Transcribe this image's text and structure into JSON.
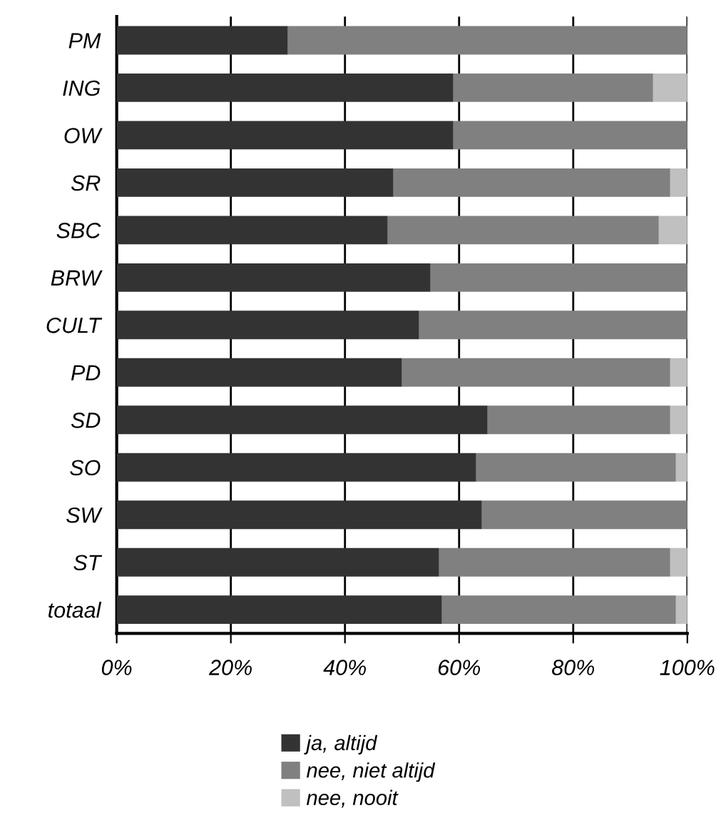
{
  "chart_data": {
    "type": "bar",
    "orientation": "horizontal",
    "stacked": true,
    "categories": [
      "PM",
      "ING",
      "OW",
      "SR",
      "SBC",
      "BRW",
      "CULT",
      "PD",
      "SD",
      "SO",
      "SW",
      "ST",
      "totaal"
    ],
    "series": [
      {
        "name": "ja, altijd",
        "color": "#333333",
        "values": [
          30,
          59,
          59,
          48.5,
          47.5,
          55,
          53,
          50,
          65,
          63,
          64,
          56.5,
          57
        ]
      },
      {
        "name": "nee, niet altijd",
        "color": "#808080",
        "values": [
          70,
          35,
          41,
          48.5,
          47.5,
          45,
          47,
          47,
          32,
          35,
          36,
          40.5,
          41
        ]
      },
      {
        "name": "nee, nooit",
        "color": "#c0c0c0",
        "values": [
          0,
          6,
          0,
          3,
          5,
          0,
          0,
          3,
          3,
          2,
          0,
          3,
          2
        ]
      }
    ],
    "xlim": [
      0,
      100
    ],
    "xticks": [
      {
        "value": 0,
        "label": "0%"
      },
      {
        "value": 20,
        "label": "20%"
      },
      {
        "value": 40,
        "label": "40%"
      },
      {
        "value": 60,
        "label": "60%"
      },
      {
        "value": 80,
        "label": "80%"
      },
      {
        "value": 100,
        "label": "100%"
      }
    ],
    "grid": "x",
    "legend": "bottom"
  }
}
